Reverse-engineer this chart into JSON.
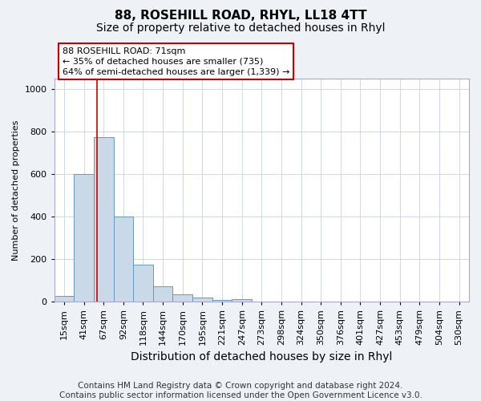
{
  "title": "88, ROSEHILL ROAD, RHYL, LL18 4TT",
  "subtitle": "Size of property relative to detached houses in Rhyl",
  "xlabel": "Distribution of detached houses by size in Rhyl",
  "ylabel": "Number of detached properties",
  "bin_labels": [
    "15sqm",
    "41sqm",
    "67sqm",
    "92sqm",
    "118sqm",
    "144sqm",
    "170sqm",
    "195sqm",
    "221sqm",
    "247sqm",
    "273sqm",
    "298sqm",
    "324sqm",
    "350sqm",
    "376sqm",
    "401sqm",
    "427sqm",
    "453sqm",
    "479sqm",
    "504sqm",
    "530sqm"
  ],
  "bar_values": [
    28,
    600,
    775,
    400,
    175,
    70,
    35,
    18,
    8,
    10,
    0,
    0,
    0,
    0,
    0,
    0,
    0,
    0,
    0,
    0,
    0
  ],
  "bar_color": "#c9d9e8",
  "bar_edge_color": "#6699bb",
  "bar_edge_width": 0.7,
  "ylim": [
    0,
    1050
  ],
  "yticks": [
    0,
    200,
    400,
    600,
    800,
    1000
  ],
  "property_line_color": "#cc0000",
  "annotation_line1": "88 ROSEHILL ROAD: 71sqm",
  "annotation_line2": "← 35% of detached houses are smaller (735)",
  "annotation_line3": "64% of semi-detached houses are larger (1,339) →",
  "annotation_box_edge": "#cc0000",
  "footer_text": "Contains HM Land Registry data © Crown copyright and database right 2024.\nContains public sector information licensed under the Open Government Licence v3.0.",
  "grid_color": "#ccd8e4",
  "background_color": "#eef2f6",
  "plot_bg_color": "#ffffff",
  "title_fontsize": 11,
  "subtitle_fontsize": 10,
  "xlabel_fontsize": 10,
  "ylabel_fontsize": 8,
  "tick_fontsize": 8,
  "footer_fontsize": 7.5
}
